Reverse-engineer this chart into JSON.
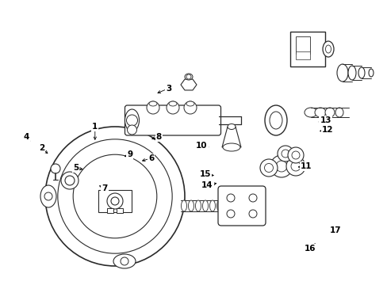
{
  "background_color": "#ffffff",
  "line_color": "#2a2a2a",
  "figsize": [
    4.89,
    3.6
  ],
  "dpi": 100,
  "labels": [
    [
      1,
      0.245,
      0.445,
      0.245,
      0.5
    ],
    [
      2,
      0.108,
      0.52,
      0.128,
      0.545
    ],
    [
      3,
      0.435,
      0.31,
      0.4,
      0.33
    ],
    [
      4,
      0.068,
      0.48,
      0.082,
      0.503
    ],
    [
      5,
      0.195,
      0.59,
      0.22,
      0.595
    ],
    [
      6,
      0.39,
      0.555,
      0.36,
      0.567
    ],
    [
      7,
      0.27,
      0.66,
      0.25,
      0.648
    ],
    [
      8,
      0.41,
      0.48,
      0.385,
      0.49
    ],
    [
      9,
      0.335,
      0.542,
      0.315,
      0.553
    ],
    [
      10,
      0.52,
      0.512,
      0.545,
      0.518
    ],
    [
      11,
      0.79,
      0.583,
      0.762,
      0.587
    ],
    [
      12,
      0.845,
      0.455,
      0.818,
      0.462
    ],
    [
      13,
      0.84,
      0.422,
      0.815,
      0.43
    ],
    [
      14,
      0.535,
      0.65,
      0.565,
      0.641
    ],
    [
      15,
      0.53,
      0.612,
      0.558,
      0.617
    ],
    [
      16,
      0.8,
      0.872,
      0.818,
      0.848
    ],
    [
      17,
      0.865,
      0.808,
      0.858,
      0.793
    ]
  ]
}
